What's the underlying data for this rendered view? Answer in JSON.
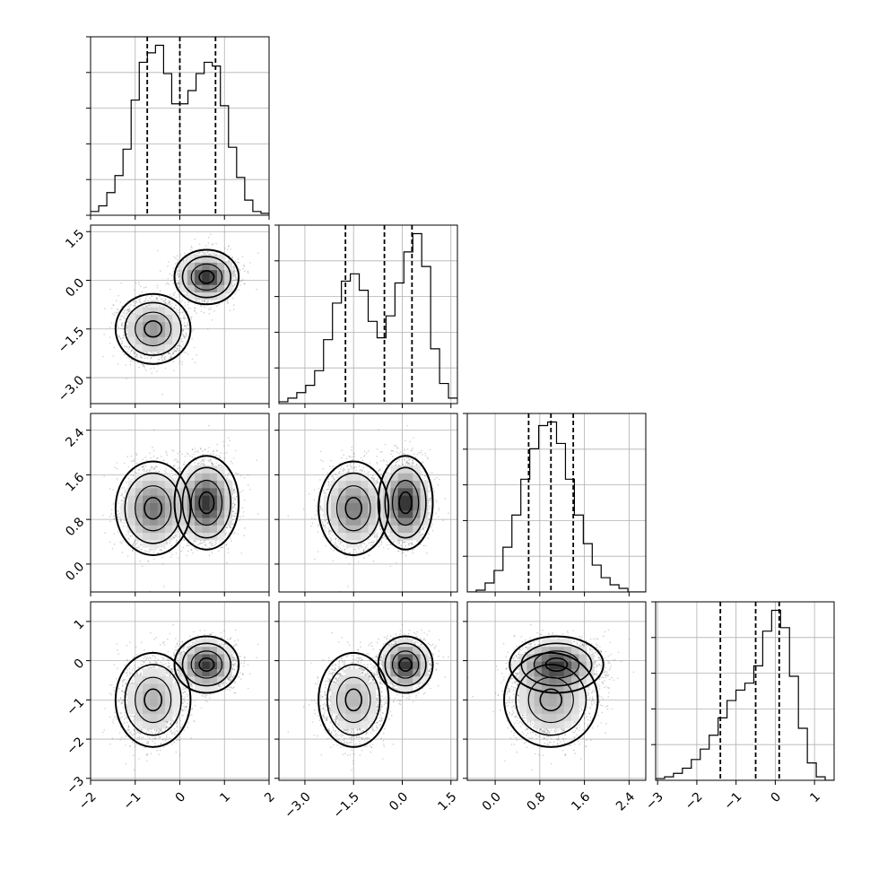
{
  "chart_data": {
    "type": "corner",
    "dims": 4,
    "grid": true,
    "variables": [
      {
        "range": [
          -2,
          2
        ],
        "ticks": [
          -2,
          -1,
          0,
          1,
          2
        ],
        "tick_labels": [
          "−2",
          "−1",
          "0",
          "1",
          "2"
        ],
        "quantiles": [
          -0.73,
          0.0,
          0.8
        ]
      },
      {
        "range": [
          -3.8,
          1.7
        ],
        "ticks": [
          -3.0,
          -1.5,
          0.0,
          1.5
        ],
        "tick_labels": [
          "−3.0",
          "−1.5",
          "0.0",
          "1.5"
        ],
        "quantiles": [
          -1.75,
          -0.55,
          0.3
        ]
      },
      {
        "range": [
          -0.5,
          2.7
        ],
        "ticks": [
          0.0,
          0.8,
          1.6,
          2.4
        ],
        "tick_labels": [
          "0.0",
          "0.8",
          "1.6",
          "2.4"
        ],
        "quantiles": [
          0.6,
          1.0,
          1.4
        ]
      },
      {
        "range": [
          -3.05,
          1.5
        ],
        "ticks": [
          -3,
          -2,
          -1,
          0,
          1
        ],
        "tick_labels": [
          "−3",
          "−2",
          "−1",
          "0",
          "1"
        ],
        "quantiles": [
          -1.4,
          -0.5,
          0.1
        ]
      }
    ],
    "histograms": [
      {
        "var": 0,
        "edges_range": [
          -2,
          2
        ],
        "counts": [
          0.02,
          0.05,
          0.12,
          0.21,
          0.35,
          0.61,
          0.81,
          0.86,
          0.9,
          0.75,
          0.59,
          0.59,
          0.66,
          0.75,
          0.81,
          0.79,
          0.58,
          0.36,
          0.2,
          0.08,
          0.02,
          0.01
        ]
      },
      {
        "var": 1,
        "edges_range": [
          -3.8,
          1.7
        ],
        "counts": [
          0.01,
          0.03,
          0.06,
          0.1,
          0.18,
          0.35,
          0.55,
          0.67,
          0.71,
          0.62,
          0.45,
          0.36,
          0.48,
          0.66,
          0.83,
          0.93,
          0.75,
          0.3,
          0.11,
          0.03
        ]
      },
      {
        "var": 2,
        "edges_range": [
          -0.5,
          2.7
        ],
        "counts": [
          0.0,
          0.01,
          0.05,
          0.12,
          0.25,
          0.43,
          0.63,
          0.8,
          0.93,
          0.95,
          0.83,
          0.63,
          0.43,
          0.27,
          0.15,
          0.08,
          0.04,
          0.02,
          0.0,
          0.0
        ]
      },
      {
        "var": 3,
        "edges_range": [
          -3.05,
          1.5
        ],
        "counts": [
          0.01,
          0.02,
          0.04,
          0.07,
          0.12,
          0.18,
          0.26,
          0.36,
          0.46,
          0.52,
          0.56,
          0.66,
          0.86,
          0.98,
          0.88,
          0.6,
          0.3,
          0.1,
          0.02,
          0.0
        ]
      }
    ],
    "mixture_components": [
      {
        "weight": 0.45,
        "mean": [
          -0.6,
          -1.5,
          1.0,
          -1.0
        ],
        "sd": [
          0.35,
          0.45,
          0.35,
          0.5
        ]
      },
      {
        "weight": 0.55,
        "mean": [
          0.6,
          0.1,
          1.1,
          -0.1
        ],
        "sd": [
          0.3,
          0.35,
          0.35,
          0.3
        ]
      }
    ],
    "title": "",
    "xlabel": "",
    "ylabel": ""
  }
}
